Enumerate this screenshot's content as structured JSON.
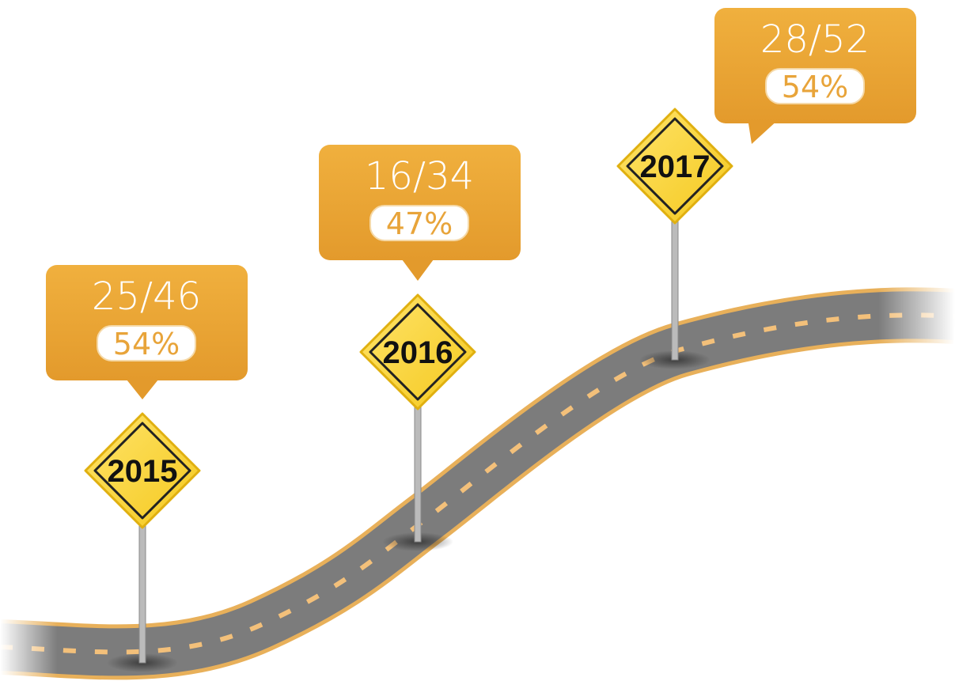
{
  "milestones": [
    {
      "year": "2015",
      "ratio": "25/46",
      "percent": "54%"
    },
    {
      "year": "2016",
      "ratio": "16/34",
      "percent": "47%"
    },
    {
      "year": "2017",
      "ratio": "28/52",
      "percent": "54%"
    }
  ]
}
